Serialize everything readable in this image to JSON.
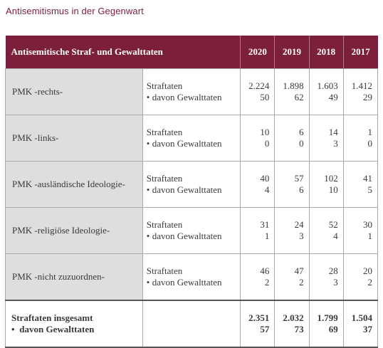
{
  "page_title": "Antisemitismus in der Gegenwart",
  "table": {
    "title": "Antisemitische Straf- und Gewalttaten",
    "years": [
      "2020",
      "2019",
      "2018",
      "2017"
    ],
    "sub_labels": {
      "straftaten": "Straftaten",
      "gewalt": "davon Gewalttaten",
      "bullet": "•"
    },
    "groups": [
      {
        "label": "PMK -rechts-",
        "straftaten": [
          "2.224",
          "1.898",
          "1.603",
          "1.412"
        ],
        "gewalt": [
          "50",
          "62",
          "49",
          "29"
        ]
      },
      {
        "label": "PMK -links-",
        "straftaten": [
          "10",
          "6",
          "14",
          "1"
        ],
        "gewalt": [
          "0",
          "0",
          "3",
          "0"
        ]
      },
      {
        "label": "PMK -ausländische Ideologie-",
        "straftaten": [
          "40",
          "57",
          "102",
          "41"
        ],
        "gewalt": [
          "4",
          "6",
          "10",
          "5"
        ]
      },
      {
        "label": "PMK -religiöse Ideologie-",
        "straftaten": [
          "31",
          "24",
          "52",
          "30"
        ],
        "gewalt": [
          "1",
          "3",
          "4",
          "1"
        ]
      },
      {
        "label": "PMK -nicht zuzuordnen-",
        "straftaten": [
          "46",
          "47",
          "28",
          "20"
        ],
        "gewalt": [
          "2",
          "2",
          "3",
          "2"
        ]
      }
    ],
    "total": {
      "label_1": "Straftaten insgesamt",
      "label_2": "davon Gewalttaten",
      "straftaten": [
        "2.351",
        "2.032",
        "1.799",
        "1.504"
      ],
      "gewalt": [
        "57",
        "73",
        "69",
        "37"
      ]
    }
  },
  "colors": {
    "header_bg": "#7b1f3a",
    "group_bg": "#dedede",
    "title_text": "#7b1f3a"
  }
}
